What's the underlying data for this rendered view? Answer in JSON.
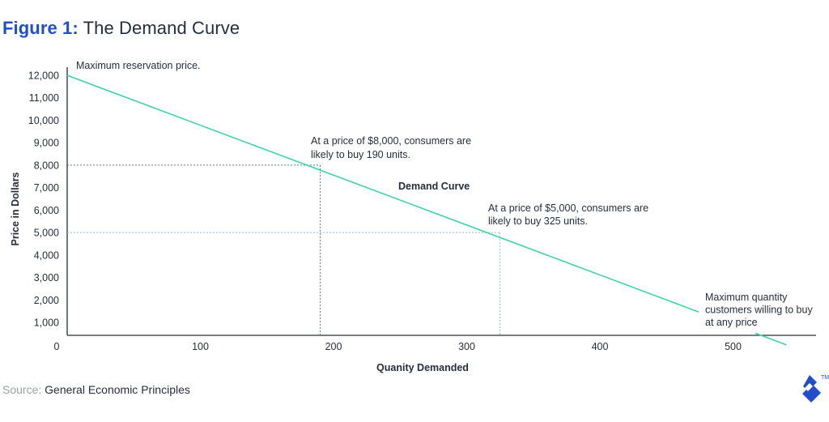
{
  "figure": {
    "label": "Figure 1:",
    "title": "The Demand Curve"
  },
  "source": {
    "label": "Source:",
    "value": "General Economic Principles"
  },
  "logo": {
    "name": "toptal-logo",
    "mark": "TM"
  },
  "colors": {
    "accent": "#204ecf",
    "curve": "#3ad6a0",
    "guide_y": "#4a78c8",
    "guide_x": "#8fb7e4",
    "axis": "#262d3d",
    "text": "#262d3d"
  },
  "chart_data": {
    "type": "line",
    "title": "The Demand Curve",
    "xlabel": "Quanity Demanded",
    "ylabel": "Price in Dollars",
    "xlim": [
      0,
      570
    ],
    "ylim": [
      0,
      12000
    ],
    "x_ticks": [
      0,
      100,
      200,
      300,
      400,
      500
    ],
    "x_tick_labels": [
      "0",
      "100",
      "200",
      "300",
      "400",
      "500"
    ],
    "y_ticks": [
      1000,
      2000,
      3000,
      4000,
      5000,
      6000,
      7000,
      8000,
      9000,
      10000,
      11000,
      12000
    ],
    "y_tick_labels": [
      "1,000",
      "2,000",
      "3,000",
      "4,000",
      "5,000",
      "6,000",
      "7,000",
      "8,000",
      "9,000",
      "10,000",
      "11,000",
      "12,000"
    ],
    "grid": false,
    "series": [
      {
        "name": "Demand Curve",
        "x": [
          0,
          540
        ],
        "y": [
          12000,
          0
        ]
      }
    ],
    "reference_points": [
      {
        "x": 190,
        "y": 8000
      },
      {
        "x": 325,
        "y": 5000
      }
    ],
    "annotations": {
      "max_price": "Maximum reservation price.",
      "point_8000": [
        "At a price of $8,000, consumers are",
        "likely to buy 190 units."
      ],
      "curve_label": "Demand Curve",
      "point_5000": [
        "At a price of $5,000, consumers are",
        "likely to buy 325 units."
      ],
      "max_quantity": [
        "Maximum quantity",
        "customers willing to buy",
        "at any price"
      ]
    }
  }
}
